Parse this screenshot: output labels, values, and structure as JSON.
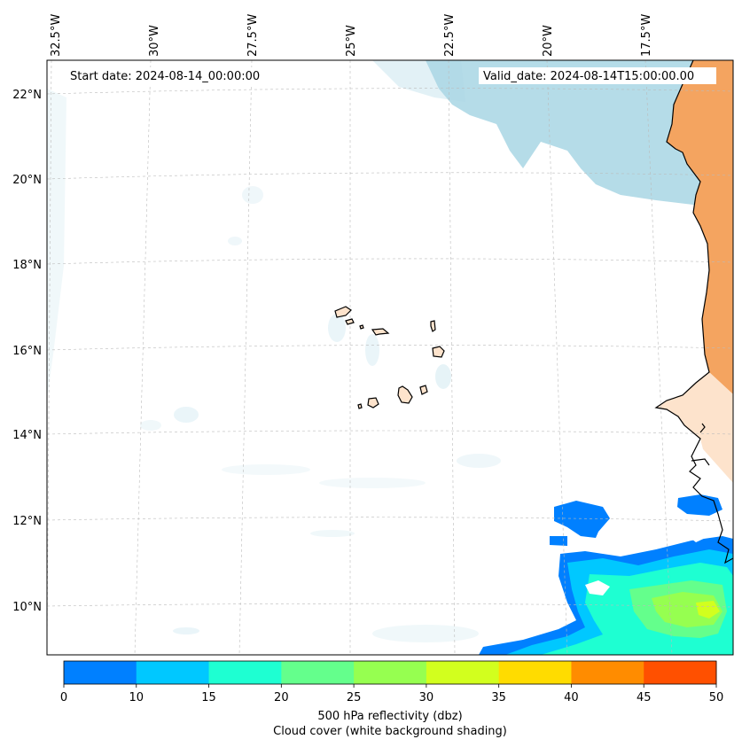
{
  "header": {
    "start_date": "Start date: 2024-08-14_00:00:00",
    "valid_date": "Valid_date: 2024-08-14T15:00:00.00"
  },
  "map": {
    "lon_labels": [
      "32.5°W",
      "30°W",
      "27.5°W",
      "25°W",
      "22.5°W",
      "20°W",
      "17.5°W"
    ],
    "lat_labels": [
      "22°N",
      "20°N",
      "18°N",
      "16°N",
      "14°N",
      "12°N",
      "10°N"
    ],
    "ocean_color": "#ffffff",
    "land_color_sahara": "#f4a460",
    "land_color_light": "#fde3cc",
    "cloud_color": "#add8e6",
    "coast_color": "#000000"
  },
  "colorbar": {
    "ticks": [
      "0",
      "10",
      "15",
      "20",
      "25",
      "30",
      "35",
      "40",
      "45",
      "50"
    ],
    "colors": [
      "#0080ff",
      "#00c8ff",
      "#1effd2",
      "#64ff8c",
      "#96ff50",
      "#d2ff1e",
      "#ffdc00",
      "#ff8c00",
      "#ff5000"
    ],
    "label_line1": "500 hPa reflectivity (dbz)",
    "label_line2": "Cloud cover (white background shading)"
  }
}
